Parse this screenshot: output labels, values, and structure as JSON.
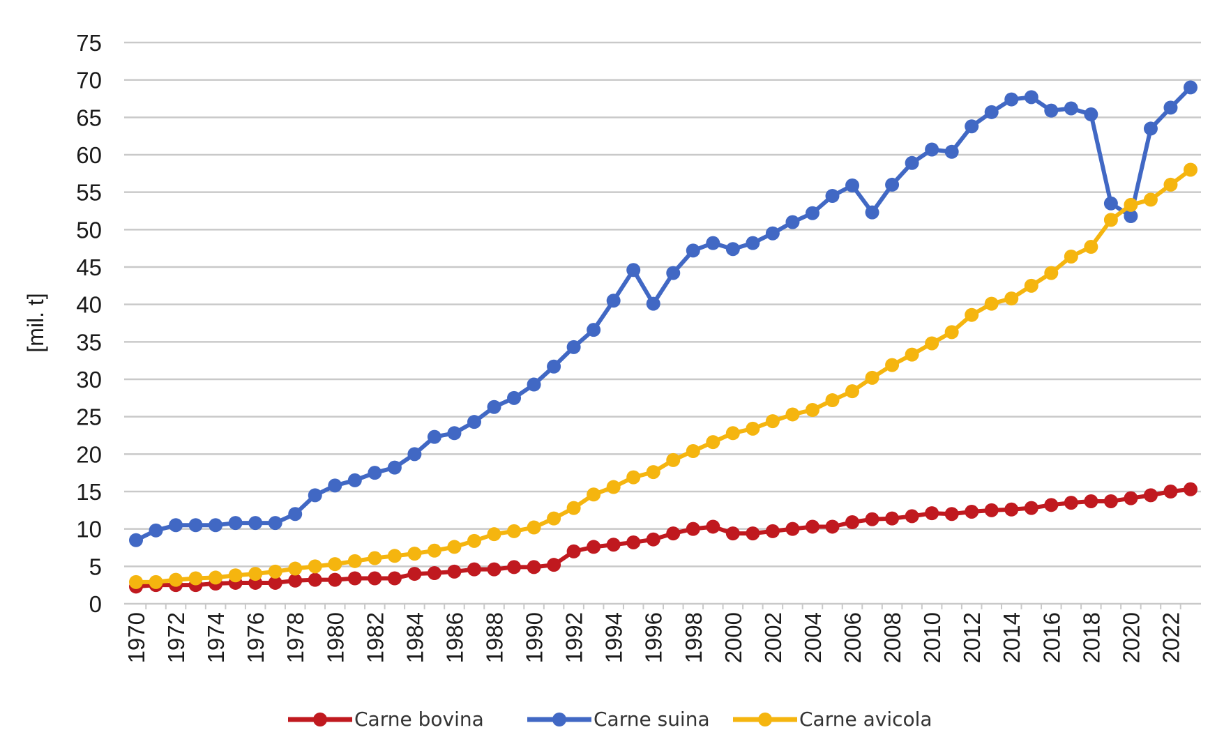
{
  "chart_data": {
    "type": "line",
    "title": "",
    "xlabel": "",
    "ylabel": "[mil.  t]",
    "ylim": [
      0,
      75
    ],
    "yticks": [
      "0",
      "5",
      "10",
      "15",
      "20",
      "25",
      "30",
      "35",
      "40",
      "45",
      "50",
      "55",
      "60",
      "65",
      "70",
      "75"
    ],
    "x": [
      1970,
      1971,
      1972,
      1973,
      1974,
      1975,
      1976,
      1977,
      1978,
      1979,
      1980,
      1981,
      1982,
      1983,
      1984,
      1985,
      1986,
      1987,
      1988,
      1989,
      1990,
      1991,
      1992,
      1993,
      1994,
      1995,
      1996,
      1997,
      1998,
      1999,
      2000,
      2001,
      2002,
      2003,
      2004,
      2005,
      2006,
      2007,
      2008,
      2009,
      2010,
      2011,
      2012,
      2013,
      2014,
      2015,
      2016,
      2017,
      2018,
      2019,
      2020,
      2021,
      2022,
      2023
    ],
    "xticks": [
      "1970",
      "1972",
      "1974",
      "1976",
      "1978",
      "1980",
      "1982",
      "1984",
      "1986",
      "1988",
      "1990",
      "1992",
      "1994",
      "1996",
      "1998",
      "2000",
      "2002",
      "2004",
      "2006",
      "2008",
      "2010",
      "2012",
      "2014",
      "2016",
      "2018",
      "2020",
      "2022"
    ],
    "grid": true,
    "legend_position": "bottom",
    "series": [
      {
        "name": "Carne bovina",
        "color": "#c0191f",
        "values": [
          2.3,
          2.5,
          2.5,
          2.5,
          2.7,
          2.8,
          2.8,
          2.8,
          3.1,
          3.2,
          3.2,
          3.4,
          3.4,
          3.4,
          4.0,
          4.1,
          4.3,
          4.6,
          4.6,
          4.9,
          4.9,
          5.2,
          7.0,
          7.6,
          7.9,
          8.2,
          8.6,
          9.4,
          10.0,
          10.3,
          9.4,
          9.4,
          9.7,
          10.0,
          10.3,
          10.3,
          10.9,
          11.3,
          11.4,
          11.7,
          12.1,
          12.0,
          12.3,
          12.5,
          12.6,
          12.8,
          13.2,
          13.5,
          13.7,
          13.7,
          14.1,
          14.5,
          15.0,
          15.3
        ]
      },
      {
        "name": "Carne suina",
        "color": "#4168c4",
        "values": [
          8.5,
          9.8,
          10.5,
          10.5,
          10.5,
          10.8,
          10.8,
          10.8,
          12.0,
          14.5,
          15.8,
          16.5,
          17.5,
          18.2,
          20.0,
          22.3,
          22.8,
          24.3,
          26.3,
          27.5,
          29.3,
          31.7,
          34.3,
          36.6,
          40.5,
          44.6,
          40.1,
          44.2,
          47.2,
          48.2,
          47.4,
          48.2,
          49.5,
          51.0,
          52.2,
          54.5,
          55.9,
          52.3,
          56.0,
          58.9,
          60.7,
          60.4,
          63.8,
          65.7,
          67.4,
          67.7,
          65.9,
          66.2,
          65.4,
          53.5,
          51.8,
          63.5,
          66.3,
          69.0
        ]
      },
      {
        "name": "Carne avicola",
        "color": "#f5b50f",
        "values": [
          2.9,
          2.9,
          3.2,
          3.4,
          3.5,
          3.8,
          4.0,
          4.3,
          4.7,
          5.0,
          5.3,
          5.7,
          6.1,
          6.4,
          6.7,
          7.1,
          7.6,
          8.4,
          9.3,
          9.7,
          10.2,
          11.4,
          12.8,
          14.6,
          15.6,
          16.9,
          17.6,
          19.2,
          20.4,
          21.6,
          22.8,
          23.4,
          24.4,
          25.3,
          25.9,
          27.2,
          28.4,
          30.2,
          31.9,
          33.3,
          34.8,
          36.3,
          38.6,
          40.1,
          40.8,
          42.5,
          44.2,
          46.4,
          47.7,
          51.3,
          53.3,
          54.0,
          56.0,
          58.0
        ]
      }
    ]
  }
}
